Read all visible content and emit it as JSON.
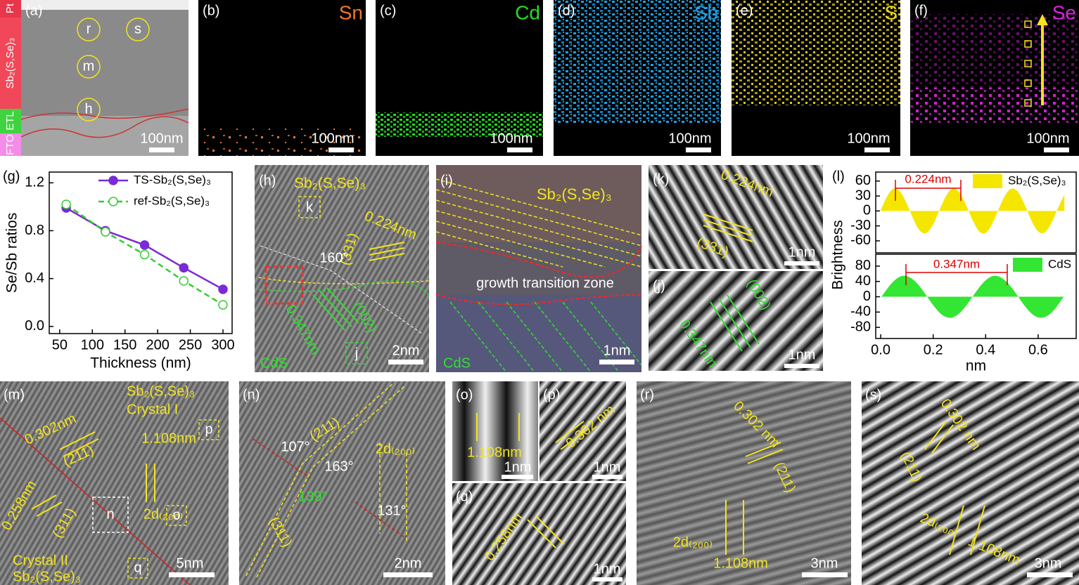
{
  "chart_data": [
    {
      "type": "line",
      "panel_label": "(g)",
      "x_label": "Thickness (nm)",
      "y_label": "Se/Sb ratios",
      "x": [
        60,
        120,
        180,
        240,
        300
      ],
      "series": [
        {
          "name": "TS-Sb₂(S,Se)₃",
          "color": "#7a2ad6",
          "marker": "filled",
          "line_style": "solid",
          "values": [
            0.99,
            0.8,
            0.68,
            0.49,
            0.31
          ]
        },
        {
          "name": "ref-Sb₂(S,Se)₃",
          "color": "#33cc33",
          "marker": "open",
          "line_style": "dashed",
          "values": [
            1.02,
            0.79,
            0.6,
            0.38,
            0.18
          ]
        }
      ],
      "xlim": [
        34,
        314
      ],
      "xticks": [
        50,
        100,
        150,
        200,
        250,
        300
      ],
      "ylim": [
        -0.06,
        1.29
      ],
      "yticks": [
        {
          "value": 0,
          "label": "0.0"
        },
        0.4,
        0.8,
        1.2
      ]
    },
    {
      "type": "area",
      "panel_label": "(l)",
      "y_label": "Brightness",
      "annotation": "0.224nm",
      "x": [
        0,
        0.025,
        0.05,
        0.075,
        0.1,
        0.125,
        0.15,
        0.175,
        0.2,
        0.225,
        0.25,
        0.275,
        0.3,
        0.325,
        0.35,
        0.375,
        0.4,
        0.425,
        0.45,
        0.475,
        0.5,
        0.525,
        0.55,
        0.575,
        0.6,
        0.625,
        0.65,
        0.675,
        0.7
      ],
      "series": [
        {
          "name": "Sb₂(S,Se)₃",
          "color": "#f5e600",
          "values": [
            1,
            30,
            45,
            38,
            14,
            -17,
            -40,
            -44,
            -27,
            3,
            31,
            45,
            37,
            12,
            -18,
            -41,
            -44,
            -26,
            4,
            32,
            45,
            37,
            11,
            -20,
            -41,
            -43,
            -25,
            5,
            33
          ]
        }
      ],
      "xlim": [
        -0.019,
        0.745
      ],
      "ylim": [
        -84,
        78
      ],
      "yticks": [
        60,
        30,
        0,
        -30,
        -60
      ]
    },
    {
      "type": "area",
      "x_label": "nm",
      "annotation": "0.347nm",
      "x": [
        0,
        0.025,
        0.05,
        0.075,
        0.1,
        0.125,
        0.15,
        0.175,
        0.2,
        0.225,
        0.25,
        0.275,
        0.3,
        0.325,
        0.35,
        0.375,
        0.4,
        0.425,
        0.45,
        0.475,
        0.5,
        0.525,
        0.55,
        0.575,
        0.6,
        0.625,
        0.65,
        0.675,
        0.7
      ],
      "series": [
        {
          "name": "CdS",
          "color": "#33e633",
          "values": [
            -3,
            21,
            41,
            53,
            54,
            44,
            26,
            2,
            -22,
            -42,
            -53,
            -54,
            -43,
            -24,
            0,
            24,
            43,
            54,
            53,
            42,
            23,
            -1,
            -25,
            -44,
            -54,
            -53,
            -42,
            -22,
            3
          ]
        }
      ],
      "xlim": [
        -0.019,
        0.745
      ],
      "ylim": [
        -109,
        111
      ],
      "yticks": [
        80,
        40,
        0,
        -40,
        -80
      ],
      "xticks": [
        {
          "value": 0,
          "label": "0.0"
        },
        0.2,
        0.4,
        0.6
      ]
    }
  ],
  "panels": {
    "a": {
      "label": "(a)",
      "layers": [
        "Pt",
        "Sb₂(S,Se)₃",
        "ETL",
        "FTO"
      ],
      "points": [
        "r",
        "s",
        "m",
        "h"
      ],
      "scale": "100nm"
    },
    "b": {
      "label": "(b)",
      "element": "Sn",
      "scale": "100nm"
    },
    "c": {
      "label": "(c)",
      "element": "Cd",
      "scale": "100nm"
    },
    "d": {
      "label": "(d)",
      "element": "Sb",
      "scale": "100nm"
    },
    "e": {
      "label": "(e)",
      "element": "S",
      "scale": "100nm"
    },
    "f": {
      "label": "(f)",
      "element": "Se",
      "scale": "100nm"
    },
    "h": {
      "label": "(h)",
      "phase": "Sb₂(S,Se)₃",
      "box_k": "k",
      "d1": "0.224nm",
      "plane1": "(331)",
      "angle": "160°",
      "d2": "0.347nm",
      "plane2": "(002)",
      "box_j": "j",
      "substrate": "CdS",
      "scale": "2nm"
    },
    "i": {
      "label": "(i)",
      "phase": "Sb₂(S,Se)₃",
      "zone": "growth transition zone",
      "substrate": "CdS",
      "scale": "1nm"
    },
    "k": {
      "label": "(k)",
      "d": "0.224nm",
      "plane": "(331)",
      "scale": "1nm"
    },
    "j": {
      "label": "(j)",
      "plane": "(002)",
      "d": "0.347nm",
      "scale": "1nm"
    },
    "m": {
      "label": "(m)",
      "phase1": "Sb₂(S,Se)₃",
      "crystal1": "Crystal I",
      "d1": "0.302nm",
      "plane1": "(211)",
      "d2": "1.108nm",
      "d2_label": "2d₍₂₀₀₎",
      "box_p": "p",
      "d3": "0.258nm",
      "plane3": "(311)",
      "box_n": "n",
      "box_o": "o",
      "crystal2": "Crystal II",
      "phase2": "Sb₂(S,Se)₃",
      "box_q": "q",
      "scale": "5nm"
    },
    "n": {
      "label": "(n)",
      "angle1": "107°",
      "plane1": "(211)",
      "angle2": "163°",
      "d_label": "2d₍₂₀₀₎",
      "angle3": "139°",
      "angle4": "131°",
      "plane2": "(311)",
      "scale": "2nm"
    },
    "o": {
      "label": "(o)",
      "d": "1.108nm",
      "scale": "1nm"
    },
    "p": {
      "label": "(p)",
      "d": "0.302 nm",
      "scale": "1nm"
    },
    "q": {
      "label": "(q)",
      "d": "0.258nm",
      "scale": "1nm"
    },
    "r": {
      "label": "(r)",
      "d1": "0.302 nm",
      "plane": "(211)",
      "d_label": "2d₍₂₀₀₎",
      "d2": "1.108nm",
      "scale": "3nm"
    },
    "s": {
      "label": "(s)",
      "d1": "0.302 nm",
      "plane": "(211)",
      "d_label": "2d₍₂₀₀₎",
      "d2": "1.108nm",
      "scale": "3nm"
    }
  }
}
